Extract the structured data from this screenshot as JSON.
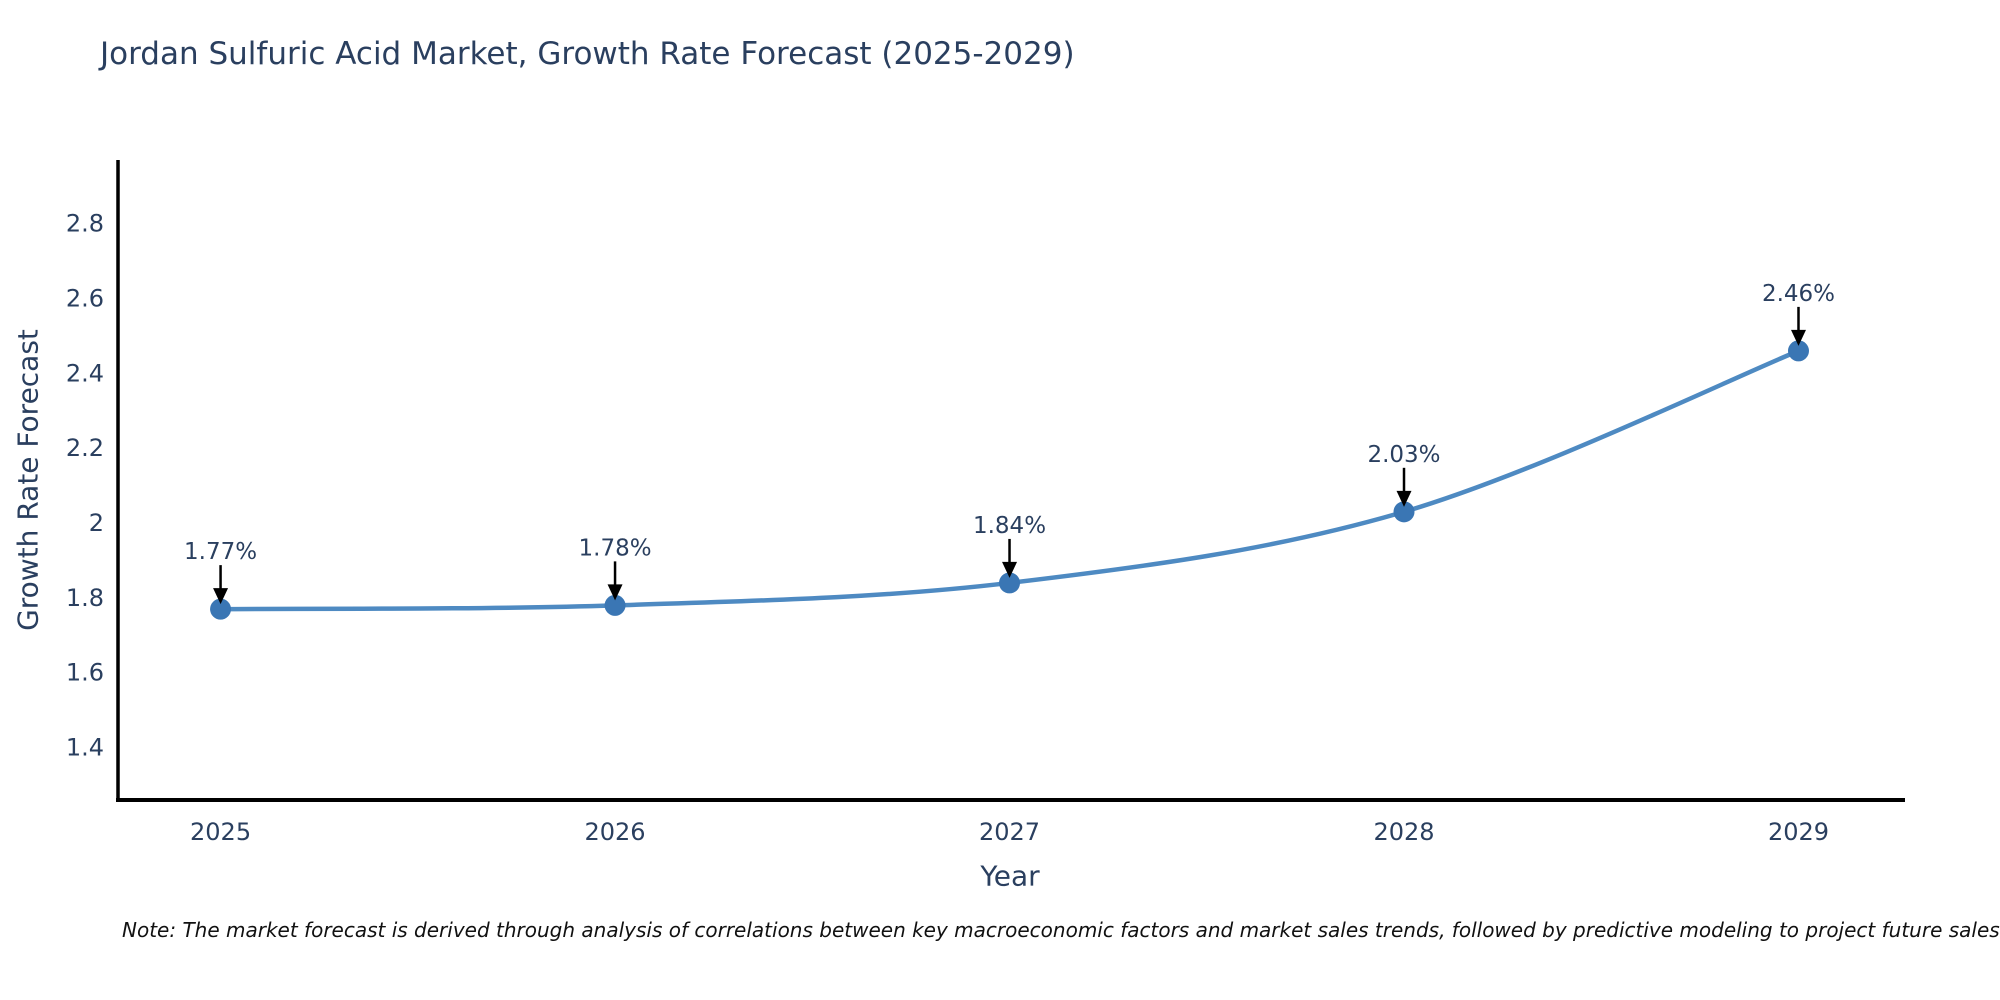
{
  "title": "Jordan Sulfuric Acid Market, Growth Rate Forecast (2025-2029)",
  "note": "Note: The market forecast is derived through analysis of correlations between key macroeconomic factors and market sales trends, followed by predictive modeling to project future sales",
  "chart_data": {
    "type": "line",
    "title": "Jordan Sulfuric Acid Market, Growth Rate Forecast (2025-2029)",
    "xlabel": "Year",
    "ylabel": "Growth Rate Forecast",
    "x": [
      2025,
      2026,
      2027,
      2028,
      2029
    ],
    "series": [
      {
        "name": "Growth Rate Forecast",
        "values": [
          1.77,
          1.78,
          1.84,
          2.03,
          2.46
        ]
      }
    ],
    "point_labels": [
      "1.77%",
      "1.78%",
      "1.84%",
      "2.03%",
      "2.46%"
    ],
    "yticks": [
      1.4,
      1.6,
      1.8,
      2,
      2.2,
      2.4,
      2.6,
      2.8
    ],
    "ytick_labels": [
      "1.4",
      "1.6",
      "1.8",
      "2",
      "2.2",
      "2.4",
      "2.6",
      "2.8"
    ],
    "xtick_labels": [
      "2025",
      "2026",
      "2027",
      "2028",
      "2029"
    ],
    "xlim": [
      2024.74,
      2029.27
    ],
    "ylim": [
      1.26,
      2.97
    ],
    "grid": false,
    "legend": "none",
    "line_smoothing": true,
    "annotations_arrow": "down-to-point"
  },
  "colors": {
    "line": "#4e8ac2",
    "marker": "#3a76b4",
    "axis_line": "#000000",
    "tick_text": "#2a3f5f",
    "title_text": "#2a3f5f",
    "annotation_text": "#2a3f5f",
    "arrow": "#000000",
    "note_text": "#111111",
    "background": "#ffffff"
  }
}
